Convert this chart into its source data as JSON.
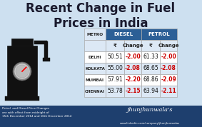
{
  "title": "Recent Change in Fuel\nPrices in India",
  "bg_color": "#cde0f0",
  "table_header_diesel": "DIESEL",
  "table_header_petrol": "PETROL",
  "col_header_metro": "METRO",
  "col_header_price": "₹",
  "col_header_change": "Change",
  "metros": [
    "DELHI",
    "KOLKATA",
    "MUMBAI",
    "CHENNAI"
  ],
  "diesel_price": [
    "50.51",
    "55.00",
    "57.91",
    "53.78"
  ],
  "diesel_change": [
    "-2.00",
    "-2.08",
    "-2.20",
    "-2.15"
  ],
  "petrol_price": [
    "61.33",
    "68.65",
    "68.86",
    "63.94"
  ],
  "petrol_change": [
    "-2.00",
    "-2.08",
    "-2.09",
    "-2.11"
  ],
  "footer_line1": "Petrol  and Diesel Price Changes",
  "footer_line2": "are with effect from midnight of",
  "footer_line3": "15th December 2014 and 16th December 2014",
  "footer_url": "www.linkedin.com/company/jhunjhunwalas",
  "signature": "Jhunjhunwala's",
  "header_bg": "#2c5f96",
  "subheader_bg": "#dce8f5",
  "row_bg_even": "#ffffff",
  "row_bg_odd": "#dce8f5",
  "change_color": "#cc0000",
  "table_border": "#aaaaaa",
  "footer_bg": "#1e3f6e",
  "footer_text_color": "#ffffff",
  "title_color": "#1a1a2e"
}
